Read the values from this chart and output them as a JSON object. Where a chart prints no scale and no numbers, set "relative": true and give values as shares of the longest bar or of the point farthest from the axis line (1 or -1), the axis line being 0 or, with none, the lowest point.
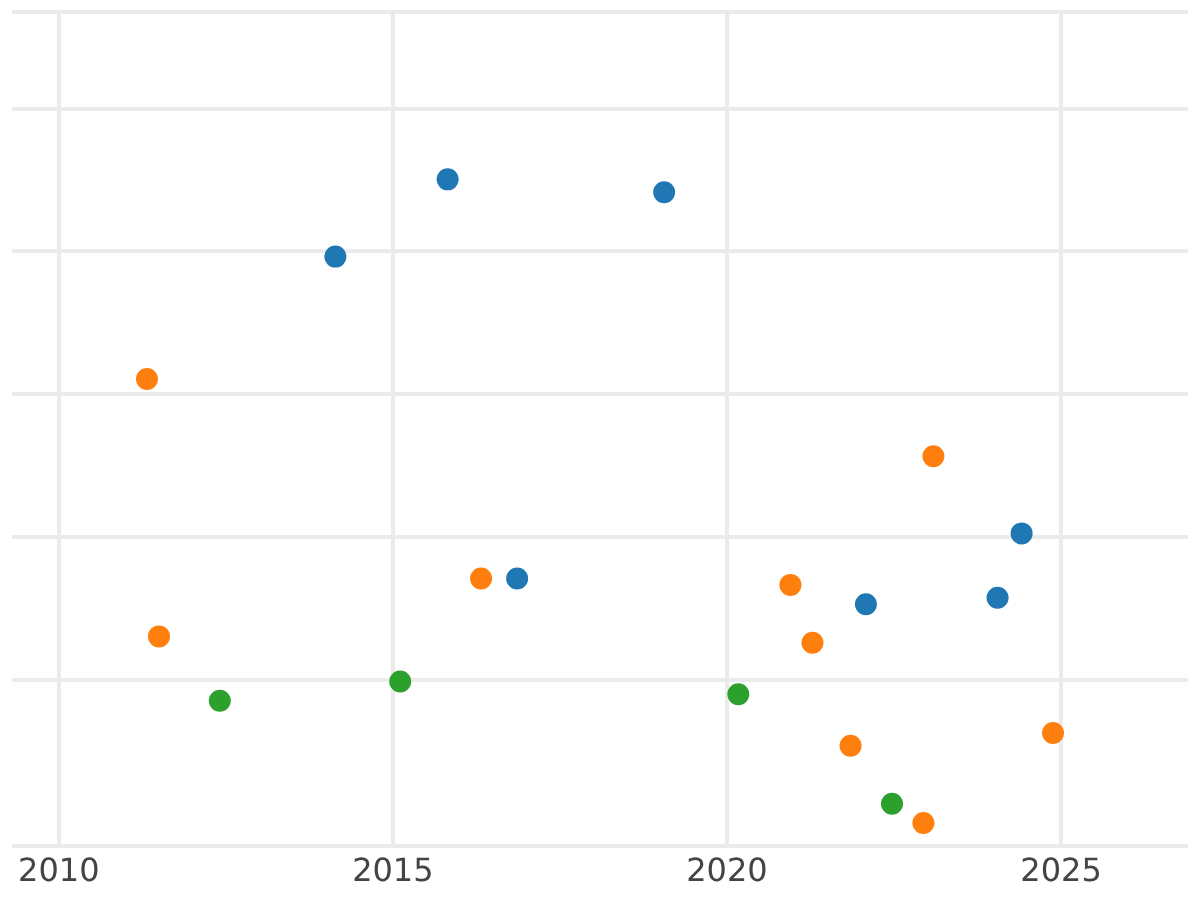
{
  "chart_data": {
    "type": "scatter",
    "relative": true,
    "xlim": [
      2009.3,
      2026.9
    ],
    "xticks": [
      2010,
      2015,
      2020,
      2025
    ],
    "grid": true,
    "legend": false,
    "marker": "circle",
    "series": [
      {
        "color": "#1f77b4",
        "x": [
          2014.14,
          2015.82,
          2016.86,
          2019.06,
          2022.08,
          2024.05,
          2024.41
        ],
        "values": [
          0.88,
          1,
          0.38,
          0.98,
          0.34,
          0.35,
          0.45
        ]
      },
      {
        "color": "#ff7f0e",
        "x": [
          2011.32,
          2011.5,
          2016.32,
          2020.95,
          2021.28,
          2021.85,
          2022.94,
          2023.09,
          2024.88
        ],
        "values": [
          0.69,
          0.29,
          0.38,
          0.37,
          0.28,
          0.12,
          0,
          0.57,
          0.14
        ]
      },
      {
        "color": "#2ca02c",
        "x": [
          2012.41,
          2015.11,
          2020.17,
          2022.47
        ],
        "values": [
          0.19,
          0.22,
          0.2,
          0.03
        ]
      }
    ]
  }
}
